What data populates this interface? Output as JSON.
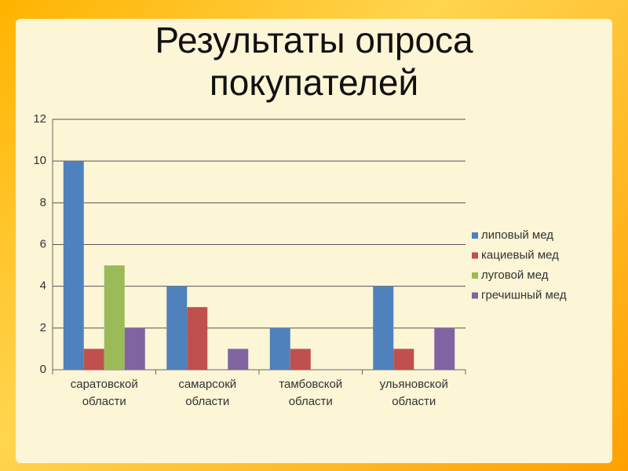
{
  "chart_data": {
    "type": "bar",
    "title": "Результаты опроса покупателей",
    "categories": [
      "саратовской области",
      "самарсокй области",
      "тамбовской области",
      "ульяновской области"
    ],
    "series": [
      {
        "name": "липовый мед",
        "color": "#4f81bd",
        "values": [
          10,
          4,
          2,
          4
        ]
      },
      {
        "name": "кациевый мед",
        "color": "#c0504d",
        "values": [
          1,
          3,
          1,
          1
        ]
      },
      {
        "name": "луговой мед",
        "color": "#9bbb59",
        "values": [
          5,
          null,
          null,
          null
        ]
      },
      {
        "name": "гречишный мед",
        "color": "#8064a2",
        "values": [
          2,
          1,
          null,
          2
        ]
      }
    ],
    "ylim": [
      0,
      12
    ],
    "yticks": [
      0,
      2,
      4,
      6,
      8,
      10,
      12
    ],
    "grid": true,
    "legend": "right"
  }
}
